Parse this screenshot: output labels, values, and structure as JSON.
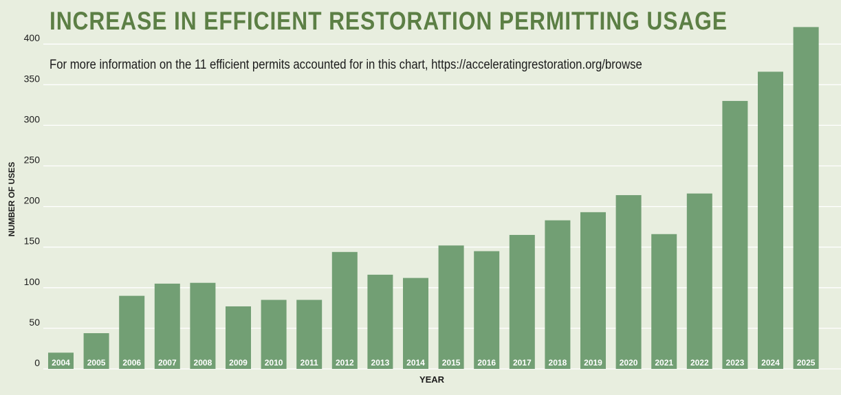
{
  "chart_data": {
    "type": "bar",
    "title": "INCREASE IN EFFICIENT RESTORATION PERMITTING USAGE",
    "subtitle": "For more information on the 11 efficient permits accounted for in this chart, https://acceleratingrestoration.org/browse",
    "xlabel": "YEAR",
    "ylabel": "NUMBER OF USES",
    "categories": [
      "2004",
      "2005",
      "2006",
      "2007",
      "2008",
      "2009",
      "2010",
      "2011",
      "2012",
      "2013",
      "2014",
      "2015",
      "2016",
      "2017",
      "2018",
      "2019",
      "2020",
      "2021",
      "2022",
      "2023",
      "2024",
      "2025"
    ],
    "values": [
      20,
      44,
      90,
      105,
      106,
      77,
      85,
      85,
      144,
      116,
      112,
      152,
      145,
      165,
      183,
      193,
      214,
      166,
      216,
      330,
      366,
      421
    ],
    "yticks": [
      0,
      50,
      100,
      150,
      200,
      250,
      300,
      350,
      400
    ],
    "ylim": [
      0,
      430
    ],
    "grid": true,
    "colors": {
      "bar": "#729f74",
      "title": "#5c7f45",
      "background": "#e8eedf",
      "category_label": "#ffffff"
    }
  }
}
